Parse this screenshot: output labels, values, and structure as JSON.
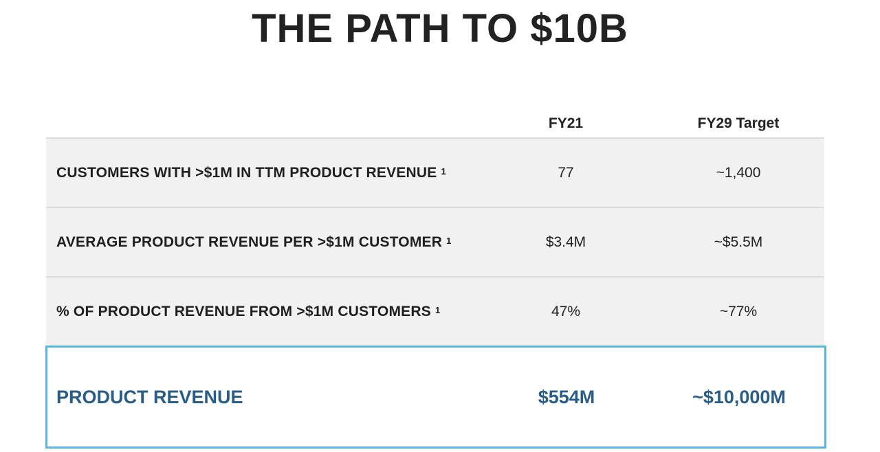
{
  "title": "THE PATH TO $10B",
  "columns": {
    "fy21": "FY21",
    "fy29": "FY29 Target"
  },
  "rows": [
    {
      "label": "CUSTOMERS WITH >$1M IN TTM PRODUCT REVENUE",
      "footnote": "1",
      "fy21": "77",
      "fy29": "~1,400"
    },
    {
      "label": "AVERAGE PRODUCT REVENUE PER >$1M CUSTOMER",
      "footnote": "1",
      "fy21": "$3.4M",
      "fy29": "~$5.5M"
    },
    {
      "label": "% OF PRODUCT REVENUE FROM >$1M CUSTOMERS",
      "footnote": "1",
      "fy21": "47%",
      "fy29": "~77%"
    }
  ],
  "total": {
    "label": "PRODUCT REVENUE",
    "fy21": "$554M",
    "fy29": "~$10,000M"
  },
  "colors": {
    "highlight_border": "#5ab4dd",
    "highlight_text": "#2a5d86",
    "row_bg": "#f1f1f1"
  }
}
